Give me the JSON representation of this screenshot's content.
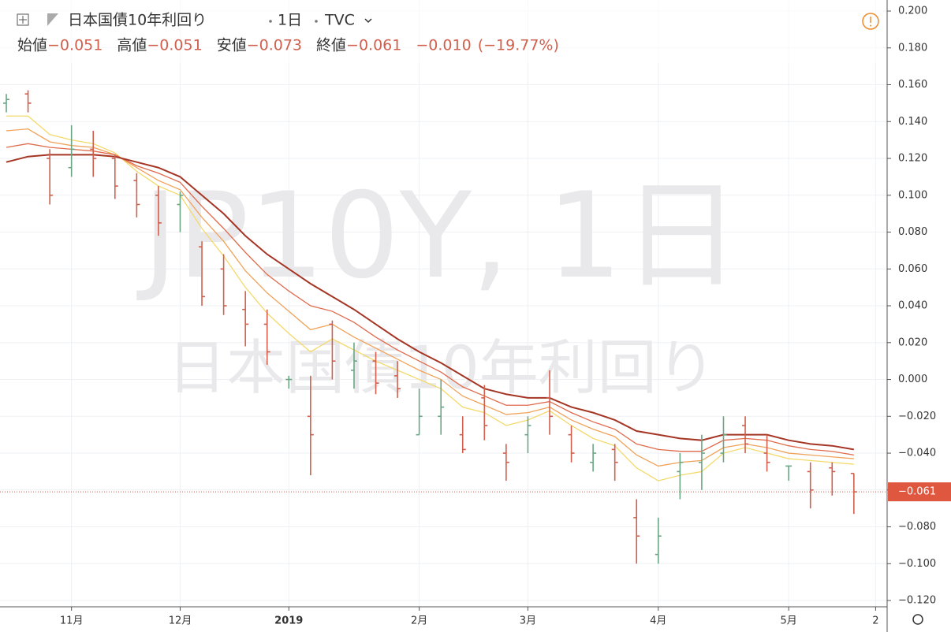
{
  "chart_data": {
    "type": "ohlc",
    "title": "日本国債10年利回り",
    "interval": "1日",
    "source": "TVC",
    "watermark": [
      "JP10Y, 1日",
      "日本国債10年利回り"
    ],
    "ohlc_labels": [
      "始値",
      "高値",
      "安値",
      "終値"
    ],
    "ohlc_values": [
      {
        "value": -0.051,
        "label": "−0.051"
      },
      {
        "value": -0.051,
        "label": "−0.051"
      },
      {
        "value": -0.073,
        "label": "−0.073"
      },
      {
        "value": -0.061,
        "label": "−0.061"
      }
    ],
    "change": {
      "value": -0.01,
      "label": "−0.010"
    },
    "change_percent": {
      "value": -19.77,
      "label": "(−19.77%)"
    },
    "last_price": {
      "value": -0.061,
      "label": "−0.061"
    },
    "up_color": "#6aa684",
    "down_color": "#d0604d",
    "categories": [
      null,
      null,
      null,
      "11月",
      null,
      null,
      null,
      null,
      "12月",
      null,
      null,
      null,
      null,
      "2019",
      null,
      null,
      null,
      null,
      null,
      "2月",
      null,
      null,
      null,
      null,
      "3月",
      null,
      null,
      null,
      null,
      null,
      "4月",
      null,
      null,
      null,
      null,
      null,
      "5月",
      null,
      null,
      null,
      "2"
    ],
    "open": [
      0.15,
      0.155,
      0.12,
      0.115,
      0.125,
      0.12,
      0.108,
      0.1,
      0.095,
      0.072,
      0.06,
      0.038,
      0.03,
      0.0,
      -0.02,
      0.03,
      0.005,
      0.01,
      0.002,
      -0.03,
      -0.02,
      -0.03,
      -0.01,
      -0.04,
      -0.03,
      -0.01,
      -0.03,
      -0.045,
      -0.038,
      -0.075,
      -0.095,
      -0.05,
      -0.045,
      -0.04,
      -0.025,
      -0.04,
      -0.047,
      -0.05,
      -0.048,
      -0.051,
      null
    ],
    "high": [
      0.155,
      0.157,
      0.125,
      0.138,
      0.135,
      0.122,
      0.112,
      0.105,
      0.102,
      0.075,
      0.068,
      0.048,
      0.038,
      0.002,
      0.002,
      0.032,
      0.02,
      0.015,
      0.01,
      -0.005,
      0.0,
      -0.02,
      -0.003,
      -0.035,
      -0.02,
      0.005,
      -0.025,
      -0.035,
      -0.035,
      -0.065,
      -0.075,
      -0.04,
      -0.03,
      -0.02,
      -0.02,
      -0.03,
      -0.047,
      -0.045,
      -0.045,
      -0.051,
      null
    ],
    "low": [
      0.145,
      0.145,
      0.095,
      0.11,
      0.11,
      0.098,
      0.088,
      0.078,
      0.08,
      0.04,
      0.035,
      0.018,
      0.008,
      -0.005,
      -0.052,
      0.0,
      -0.005,
      -0.008,
      -0.01,
      -0.03,
      -0.03,
      -0.04,
      -0.033,
      -0.055,
      -0.04,
      -0.03,
      -0.045,
      -0.05,
      -0.055,
      -0.1,
      -0.1,
      -0.065,
      -0.06,
      -0.045,
      -0.04,
      -0.05,
      -0.055,
      -0.07,
      -0.063,
      -0.073,
      null
    ],
    "close": [
      0.152,
      0.15,
      0.1,
      0.125,
      0.12,
      0.105,
      0.095,
      0.085,
      0.1,
      0.045,
      0.04,
      0.03,
      0.015,
      0.0,
      -0.03,
      0.01,
      0.01,
      -0.002,
      -0.005,
      -0.02,
      -0.015,
      -0.038,
      -0.025,
      -0.045,
      -0.025,
      -0.02,
      -0.04,
      -0.04,
      -0.045,
      -0.085,
      -0.085,
      -0.045,
      -0.04,
      -0.03,
      -0.035,
      -0.045,
      -0.047,
      -0.06,
      -0.05,
      -0.061,
      null
    ],
    "ma_lines": [
      {
        "color": "#f4d96b",
        "values": [
          0.143,
          0.143,
          0.133,
          0.13,
          0.128,
          0.123,
          0.113,
          0.105,
          0.1,
          0.082,
          0.067,
          0.05,
          0.036,
          0.025,
          0.015,
          0.022,
          0.016,
          0.01,
          0.005,
          0.0,
          -0.005,
          -0.015,
          -0.018,
          -0.025,
          -0.022,
          -0.017,
          -0.025,
          -0.032,
          -0.036,
          -0.048,
          -0.055,
          -0.052,
          -0.05,
          -0.04,
          -0.037,
          -0.04,
          -0.043,
          -0.044,
          -0.045,
          -0.046,
          null
        ]
      },
      {
        "color": "#f0a25a",
        "values": [
          0.135,
          0.136,
          0.129,
          0.127,
          0.126,
          0.122,
          0.115,
          0.108,
          0.103,
          0.088,
          0.075,
          0.059,
          0.047,
          0.037,
          0.027,
          0.03,
          0.023,
          0.017,
          0.011,
          0.005,
          0.0,
          -0.009,
          -0.014,
          -0.019,
          -0.018,
          -0.015,
          -0.022,
          -0.027,
          -0.031,
          -0.041,
          -0.047,
          -0.045,
          -0.044,
          -0.037,
          -0.035,
          -0.037,
          -0.04,
          -0.041,
          -0.042,
          -0.043,
          null
        ]
      },
      {
        "color": "#e06a4c",
        "values": [
          0.126,
          0.128,
          0.126,
          0.125,
          0.124,
          0.122,
          0.116,
          0.112,
          0.107,
          0.094,
          0.082,
          0.069,
          0.057,
          0.048,
          0.04,
          0.037,
          0.031,
          0.023,
          0.016,
          0.01,
          0.004,
          -0.004,
          -0.009,
          -0.014,
          -0.014,
          -0.012,
          -0.018,
          -0.023,
          -0.027,
          -0.035,
          -0.038,
          -0.039,
          -0.039,
          -0.033,
          -0.032,
          -0.033,
          -0.036,
          -0.038,
          -0.039,
          -0.041,
          null
        ]
      },
      {
        "color": "#a53524",
        "values": [
          0.118,
          0.121,
          0.122,
          0.122,
          0.122,
          0.121,
          0.118,
          0.115,
          0.11,
          0.1,
          0.09,
          0.078,
          0.068,
          0.06,
          0.052,
          0.045,
          0.038,
          0.03,
          0.022,
          0.015,
          0.009,
          0.002,
          -0.005,
          -0.008,
          -0.01,
          -0.01,
          -0.015,
          -0.018,
          -0.022,
          -0.028,
          -0.03,
          -0.032,
          -0.033,
          -0.03,
          -0.03,
          -0.03,
          -0.033,
          -0.035,
          -0.036,
          -0.038,
          null
        ]
      }
    ],
    "ylim": [
      -0.1234,
      0.206
    ],
    "yticks": [
      {
        "value": 0.2,
        "label": "0.200"
      },
      {
        "value": 0.18,
        "label": "0.180"
      },
      {
        "value": 0.16,
        "label": "0.160"
      },
      {
        "value": 0.14,
        "label": "0.140"
      },
      {
        "value": 0.12,
        "label": "0.120"
      },
      {
        "value": 0.1,
        "label": "0.100"
      },
      {
        "value": 0.08,
        "label": "0.080"
      },
      {
        "value": 0.06,
        "label": "0.060"
      },
      {
        "value": 0.04,
        "label": "0.040"
      },
      {
        "value": 0.02,
        "label": "0.020"
      },
      {
        "value": 0,
        "label": "0.000"
      },
      {
        "value": -0.02,
        "label": "−0.020"
      },
      {
        "value": -0.04,
        "label": "−0.040"
      },
      {
        "value": -0.06,
        "label": "−0.060"
      },
      {
        "value": -0.08,
        "label": "−0.080"
      },
      {
        "value": -0.1,
        "label": "−0.100"
      },
      {
        "value": -0.12,
        "label": "−0.120"
      }
    ],
    "grid": true
  }
}
